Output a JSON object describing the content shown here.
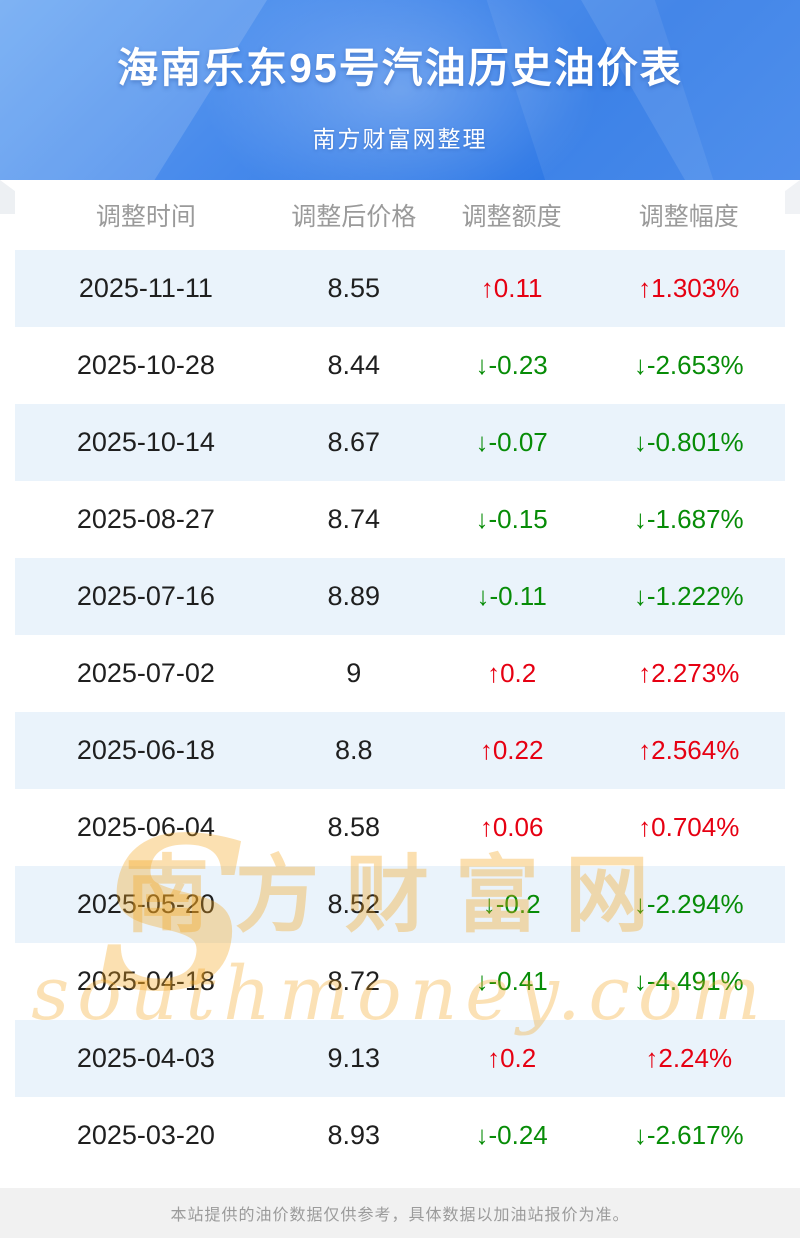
{
  "header": {
    "title": "海南乐东95号汽油历史油价表",
    "subtitle": "南方财富网整理"
  },
  "table": {
    "columns": [
      "调整时间",
      "调整后价格",
      "调整额度",
      "调整幅度"
    ],
    "rows": [
      {
        "date": "2025-11-11",
        "price": "8.55",
        "change": "↑0.11",
        "percent": "↑1.303%",
        "direction": "up"
      },
      {
        "date": "2025-10-28",
        "price": "8.44",
        "change": "↓-0.23",
        "percent": "↓-2.653%",
        "direction": "down"
      },
      {
        "date": "2025-10-14",
        "price": "8.67",
        "change": "↓-0.07",
        "percent": "↓-0.801%",
        "direction": "down"
      },
      {
        "date": "2025-08-27",
        "price": "8.74",
        "change": "↓-0.15",
        "percent": "↓-1.687%",
        "direction": "down"
      },
      {
        "date": "2025-07-16",
        "price": "8.89",
        "change": "↓-0.11",
        "percent": "↓-1.222%",
        "direction": "down"
      },
      {
        "date": "2025-07-02",
        "price": "9",
        "change": "↑0.2",
        "percent": "↑2.273%",
        "direction": "up"
      },
      {
        "date": "2025-06-18",
        "price": "8.8",
        "change": "↑0.22",
        "percent": "↑2.564%",
        "direction": "up"
      },
      {
        "date": "2025-06-04",
        "price": "8.58",
        "change": "↑0.06",
        "percent": "↑0.704%",
        "direction": "up"
      },
      {
        "date": "2025-05-20",
        "price": "8.52",
        "change": "↓-0.2",
        "percent": "↓-2.294%",
        "direction": "down"
      },
      {
        "date": "2025-04-18",
        "price": "8.72",
        "change": "↓-0.41",
        "percent": "↓-4.491%",
        "direction": "down"
      },
      {
        "date": "2025-04-03",
        "price": "9.13",
        "change": "↑0.2",
        "percent": "↑2.24%",
        "direction": "up"
      },
      {
        "date": "2025-03-20",
        "price": "8.93",
        "change": "↓-0.24",
        "percent": "↓-2.617%",
        "direction": "down"
      }
    ]
  },
  "watermark": {
    "initial": "S",
    "cn": "南方财富网",
    "en": "southmoney.com"
  },
  "footer": {
    "note": "本站提供的油价数据仅供参考，具体数据以加油站报价为准。"
  },
  "colors": {
    "up": "#e60012",
    "down": "#078c07",
    "hero_start": "#6aa7f2",
    "hero_end": "#2f79e6",
    "row_stripe": "#eaf3fb",
    "watermark": "#f5a51d"
  }
}
